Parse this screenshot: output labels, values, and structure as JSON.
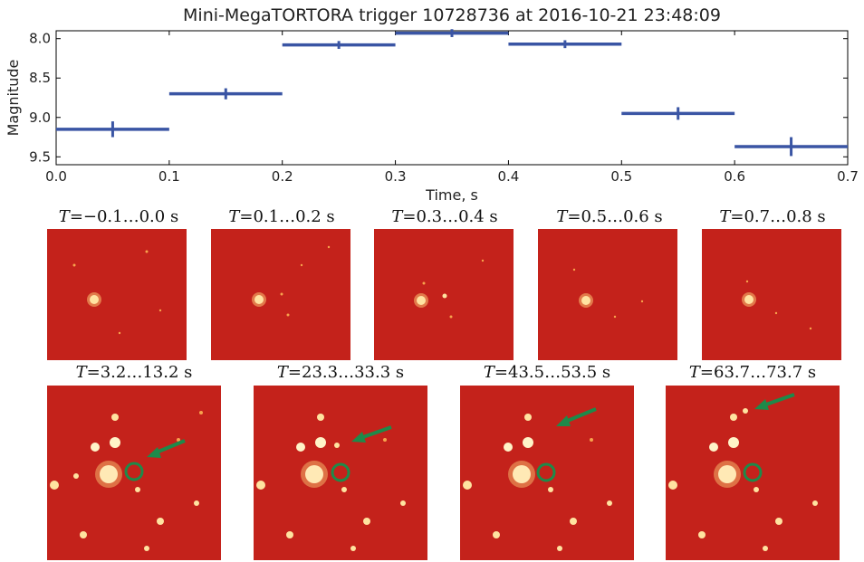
{
  "chart_data": {
    "type": "line",
    "title": "Mini-MegaTORTORA trigger 10728736 at 2016-10-21 23:48:09",
    "xlabel": "Time, s",
    "ylabel": "Magnitude",
    "xlim": [
      0.0,
      0.7
    ],
    "ylim": [
      9.6,
      7.9
    ],
    "y_inverted": true,
    "x_ticks": [
      "0.0",
      "0.1",
      "0.2",
      "0.3",
      "0.4",
      "0.5",
      "0.6",
      "0.7"
    ],
    "y_ticks": [
      "8.0",
      "8.5",
      "9.0",
      "9.5"
    ],
    "x_tick_values": [
      0.0,
      0.1,
      0.2,
      0.3,
      0.4,
      0.5,
      0.6,
      0.7
    ],
    "y_tick_values": [
      8.0,
      8.5,
      9.0,
      9.5
    ],
    "grid": false,
    "series_color": "#3a55a4",
    "points": [
      {
        "x": 0.05,
        "y": 9.15,
        "xerr": 0.05,
        "yerr": 0.1
      },
      {
        "x": 0.15,
        "y": 8.7,
        "xerr": 0.05,
        "yerr": 0.07
      },
      {
        "x": 0.25,
        "y": 8.08,
        "xerr": 0.05,
        "yerr": 0.05
      },
      {
        "x": 0.35,
        "y": 7.93,
        "xerr": 0.05,
        "yerr": 0.05
      },
      {
        "x": 0.45,
        "y": 8.07,
        "xerr": 0.05,
        "yerr": 0.05
      },
      {
        "x": 0.55,
        "y": 8.95,
        "xerr": 0.05,
        "yerr": 0.08
      },
      {
        "x": 0.65,
        "y": 9.37,
        "xerr": 0.05,
        "yerr": 0.12
      }
    ]
  },
  "panels_row1": [
    {
      "var": "T",
      "label": "=−0.1…0.0 s"
    },
    {
      "var": "T",
      "label": "=0.1…0.2 s"
    },
    {
      "var": "T",
      "label": "=0.3…0.4 s"
    },
    {
      "var": "T",
      "label": "=0.5…0.6 s"
    },
    {
      "var": "T",
      "label": "=0.7…0.8 s"
    }
  ],
  "panels_row2": [
    {
      "var": "T",
      "label": "=3.2…13.2 s"
    },
    {
      "var": "T",
      "label": "=23.3…33.3 s"
    },
    {
      "var": "T",
      "label": "=43.5…53.5 s"
    },
    {
      "var": "T",
      "label": "=63.7…73.7 s"
    }
  ],
  "colors": {
    "image_background": "#c4221b",
    "star": "#fff4c8",
    "marker": "#1e8a4a"
  }
}
